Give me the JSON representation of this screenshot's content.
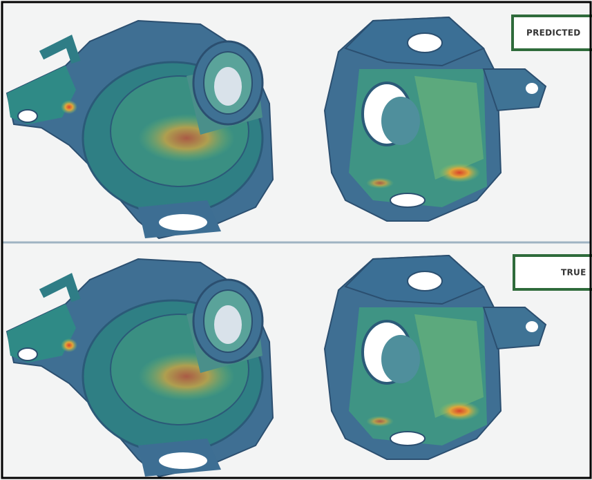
{
  "panels": [
    {
      "label": "PREDICTED"
    },
    {
      "label": "TRUE"
    }
  ]
}
